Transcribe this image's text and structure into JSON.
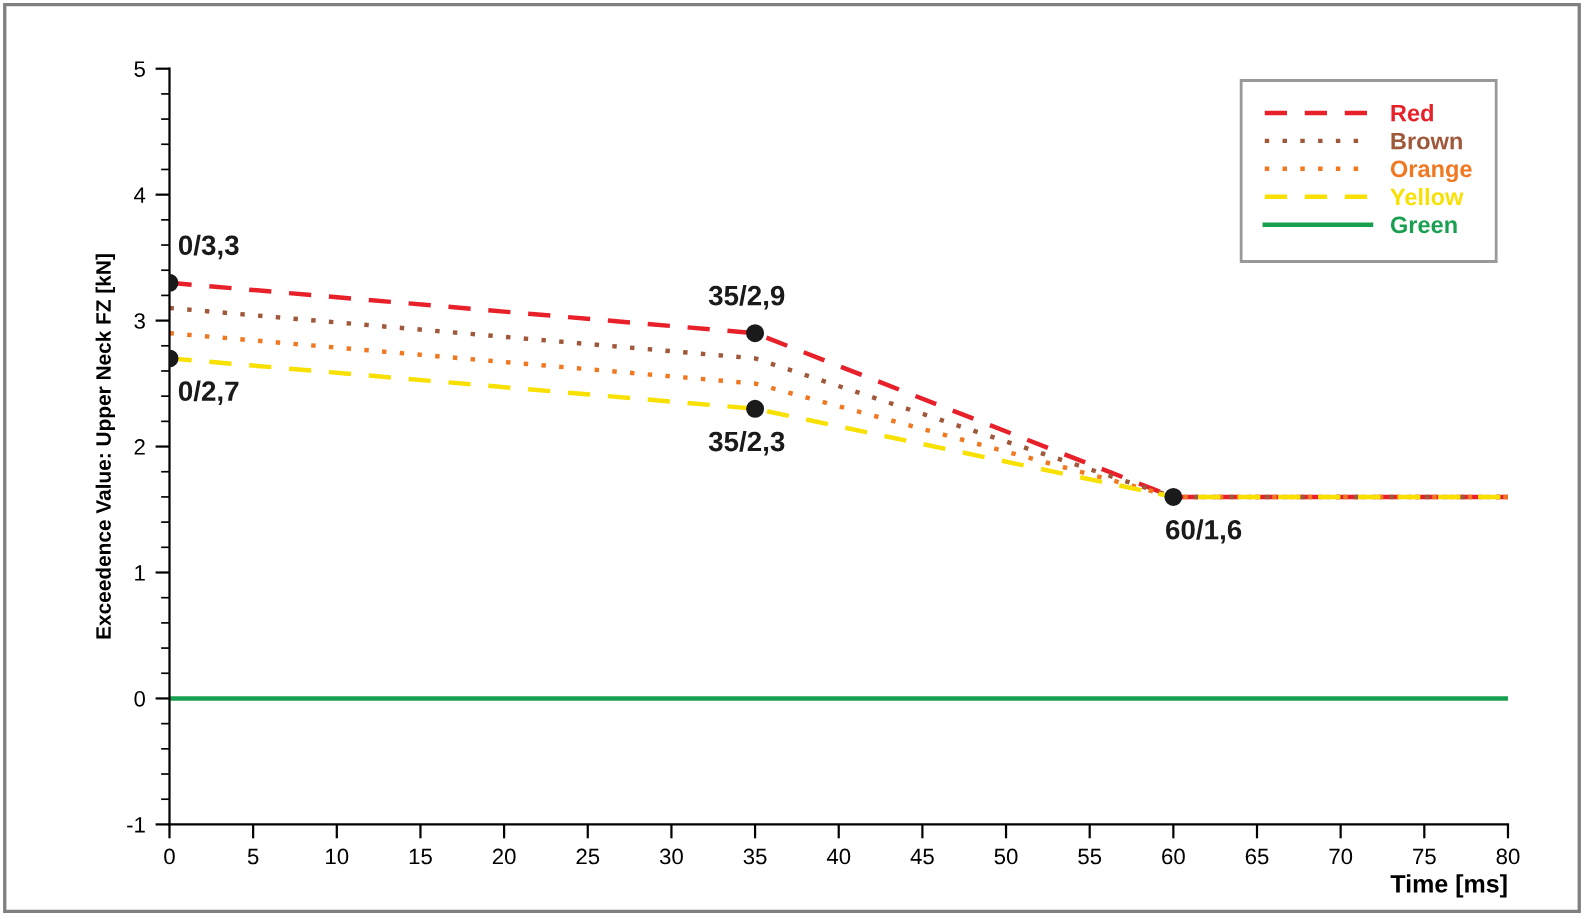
{
  "chart_data": {
    "type": "line",
    "ylabel": "Exceedence Value: Upper Neck FZ [kN]",
    "xlabel": "Time [ms]",
    "x": [
      0,
      35,
      60,
      80
    ],
    "series": [
      {
        "name": "Red",
        "color": "#e8202a",
        "values": [
          3.3,
          2.9,
          1.6,
          1.6
        ],
        "line_style": "dashed"
      },
      {
        "name": "Brown",
        "color": "#a0583a",
        "values": [
          3.1,
          2.7,
          1.6,
          1.6
        ],
        "line_style": "dotted"
      },
      {
        "name": "Orange",
        "color": "#f07820",
        "values": [
          2.9,
          2.5,
          1.6,
          1.6
        ],
        "line_style": "dotted"
      },
      {
        "name": "Yellow",
        "color": "#f8e000",
        "values": [
          2.7,
          2.3,
          1.6,
          1.6
        ],
        "line_style": "dashed"
      },
      {
        "name": "Green",
        "color": "#18a050",
        "values": [
          0,
          0,
          0,
          0
        ],
        "line_style": "solid"
      },
      {
        "type": "scatter",
        "color": "#1a1a1a",
        "x": [
          0,
          0,
          35,
          35,
          60
        ],
        "values": [
          3.3,
          2.7,
          2.9,
          2.3,
          1.6
        ],
        "marker": "circle"
      }
    ],
    "annotations": [
      {
        "text": "0/3,3",
        "x": 0,
        "y": 3.3
      },
      {
        "text": "0/2,7",
        "x": 0,
        "y": 2.7
      },
      {
        "text": "35/2,9",
        "x": 35,
        "y": 2.9
      },
      {
        "text": "35/2,3",
        "x": 35,
        "y": 2.3
      },
      {
        "text": "60/1,6",
        "x": 60,
        "y": 1.6
      }
    ],
    "xlim": [
      0,
      80
    ],
    "xticks": [
      0,
      5,
      10,
      15,
      20,
      25,
      30,
      35,
      40,
      45,
      50,
      55,
      60,
      65,
      70,
      75,
      80
    ],
    "ylim": [
      -1,
      5
    ],
    "yticks": [
      -1,
      0,
      1,
      2,
      3,
      4,
      5
    ],
    "grid": false,
    "legend": "top right"
  }
}
